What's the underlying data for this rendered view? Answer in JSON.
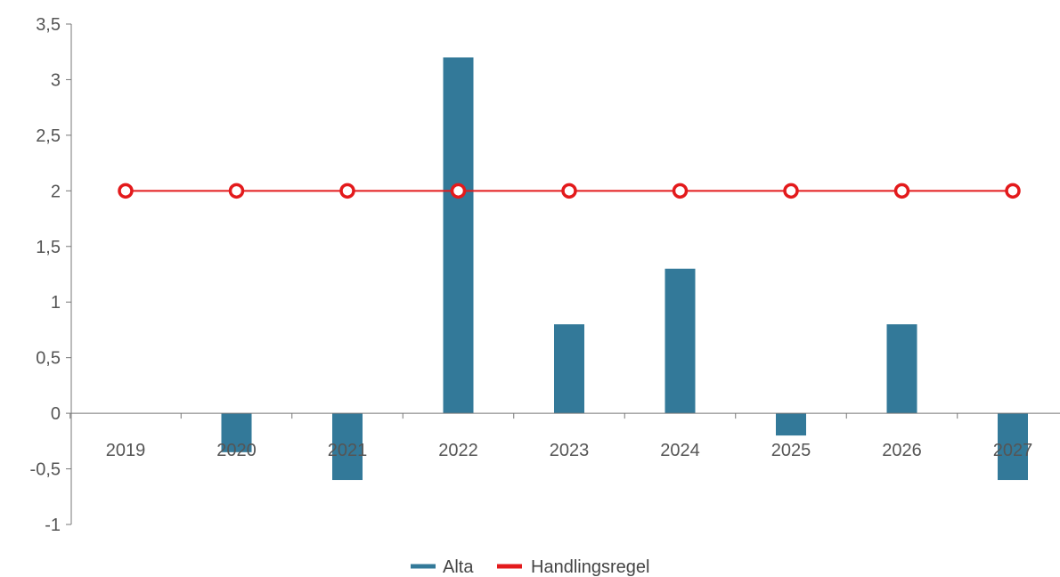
{
  "chart_data": {
    "type": "bar",
    "title": "",
    "xlabel": "",
    "ylabel": "",
    "categories": [
      "2019",
      "2020",
      "2021",
      "2022",
      "2023",
      "2024",
      "2025",
      "2026",
      "2027"
    ],
    "series": [
      {
        "name": "Alta",
        "type": "bar",
        "color": "#337999",
        "values": [
          0,
          -0.35,
          -0.6,
          3.2,
          0.8,
          1.3,
          -0.2,
          0.8,
          -0.6
        ]
      },
      {
        "name": "Handlingsregel",
        "type": "line",
        "color": "#e31a1c",
        "values": [
          2,
          2,
          2,
          2,
          2,
          2,
          2,
          2,
          2
        ]
      }
    ],
    "ylim": [
      -1,
      3.5
    ],
    "yticks": [
      "-1",
      "-0,5",
      "0",
      "0,5",
      "1",
      "1,5",
      "2",
      "2,5",
      "3",
      "3,5"
    ],
    "grid": false,
    "legend": "bottom-center"
  }
}
